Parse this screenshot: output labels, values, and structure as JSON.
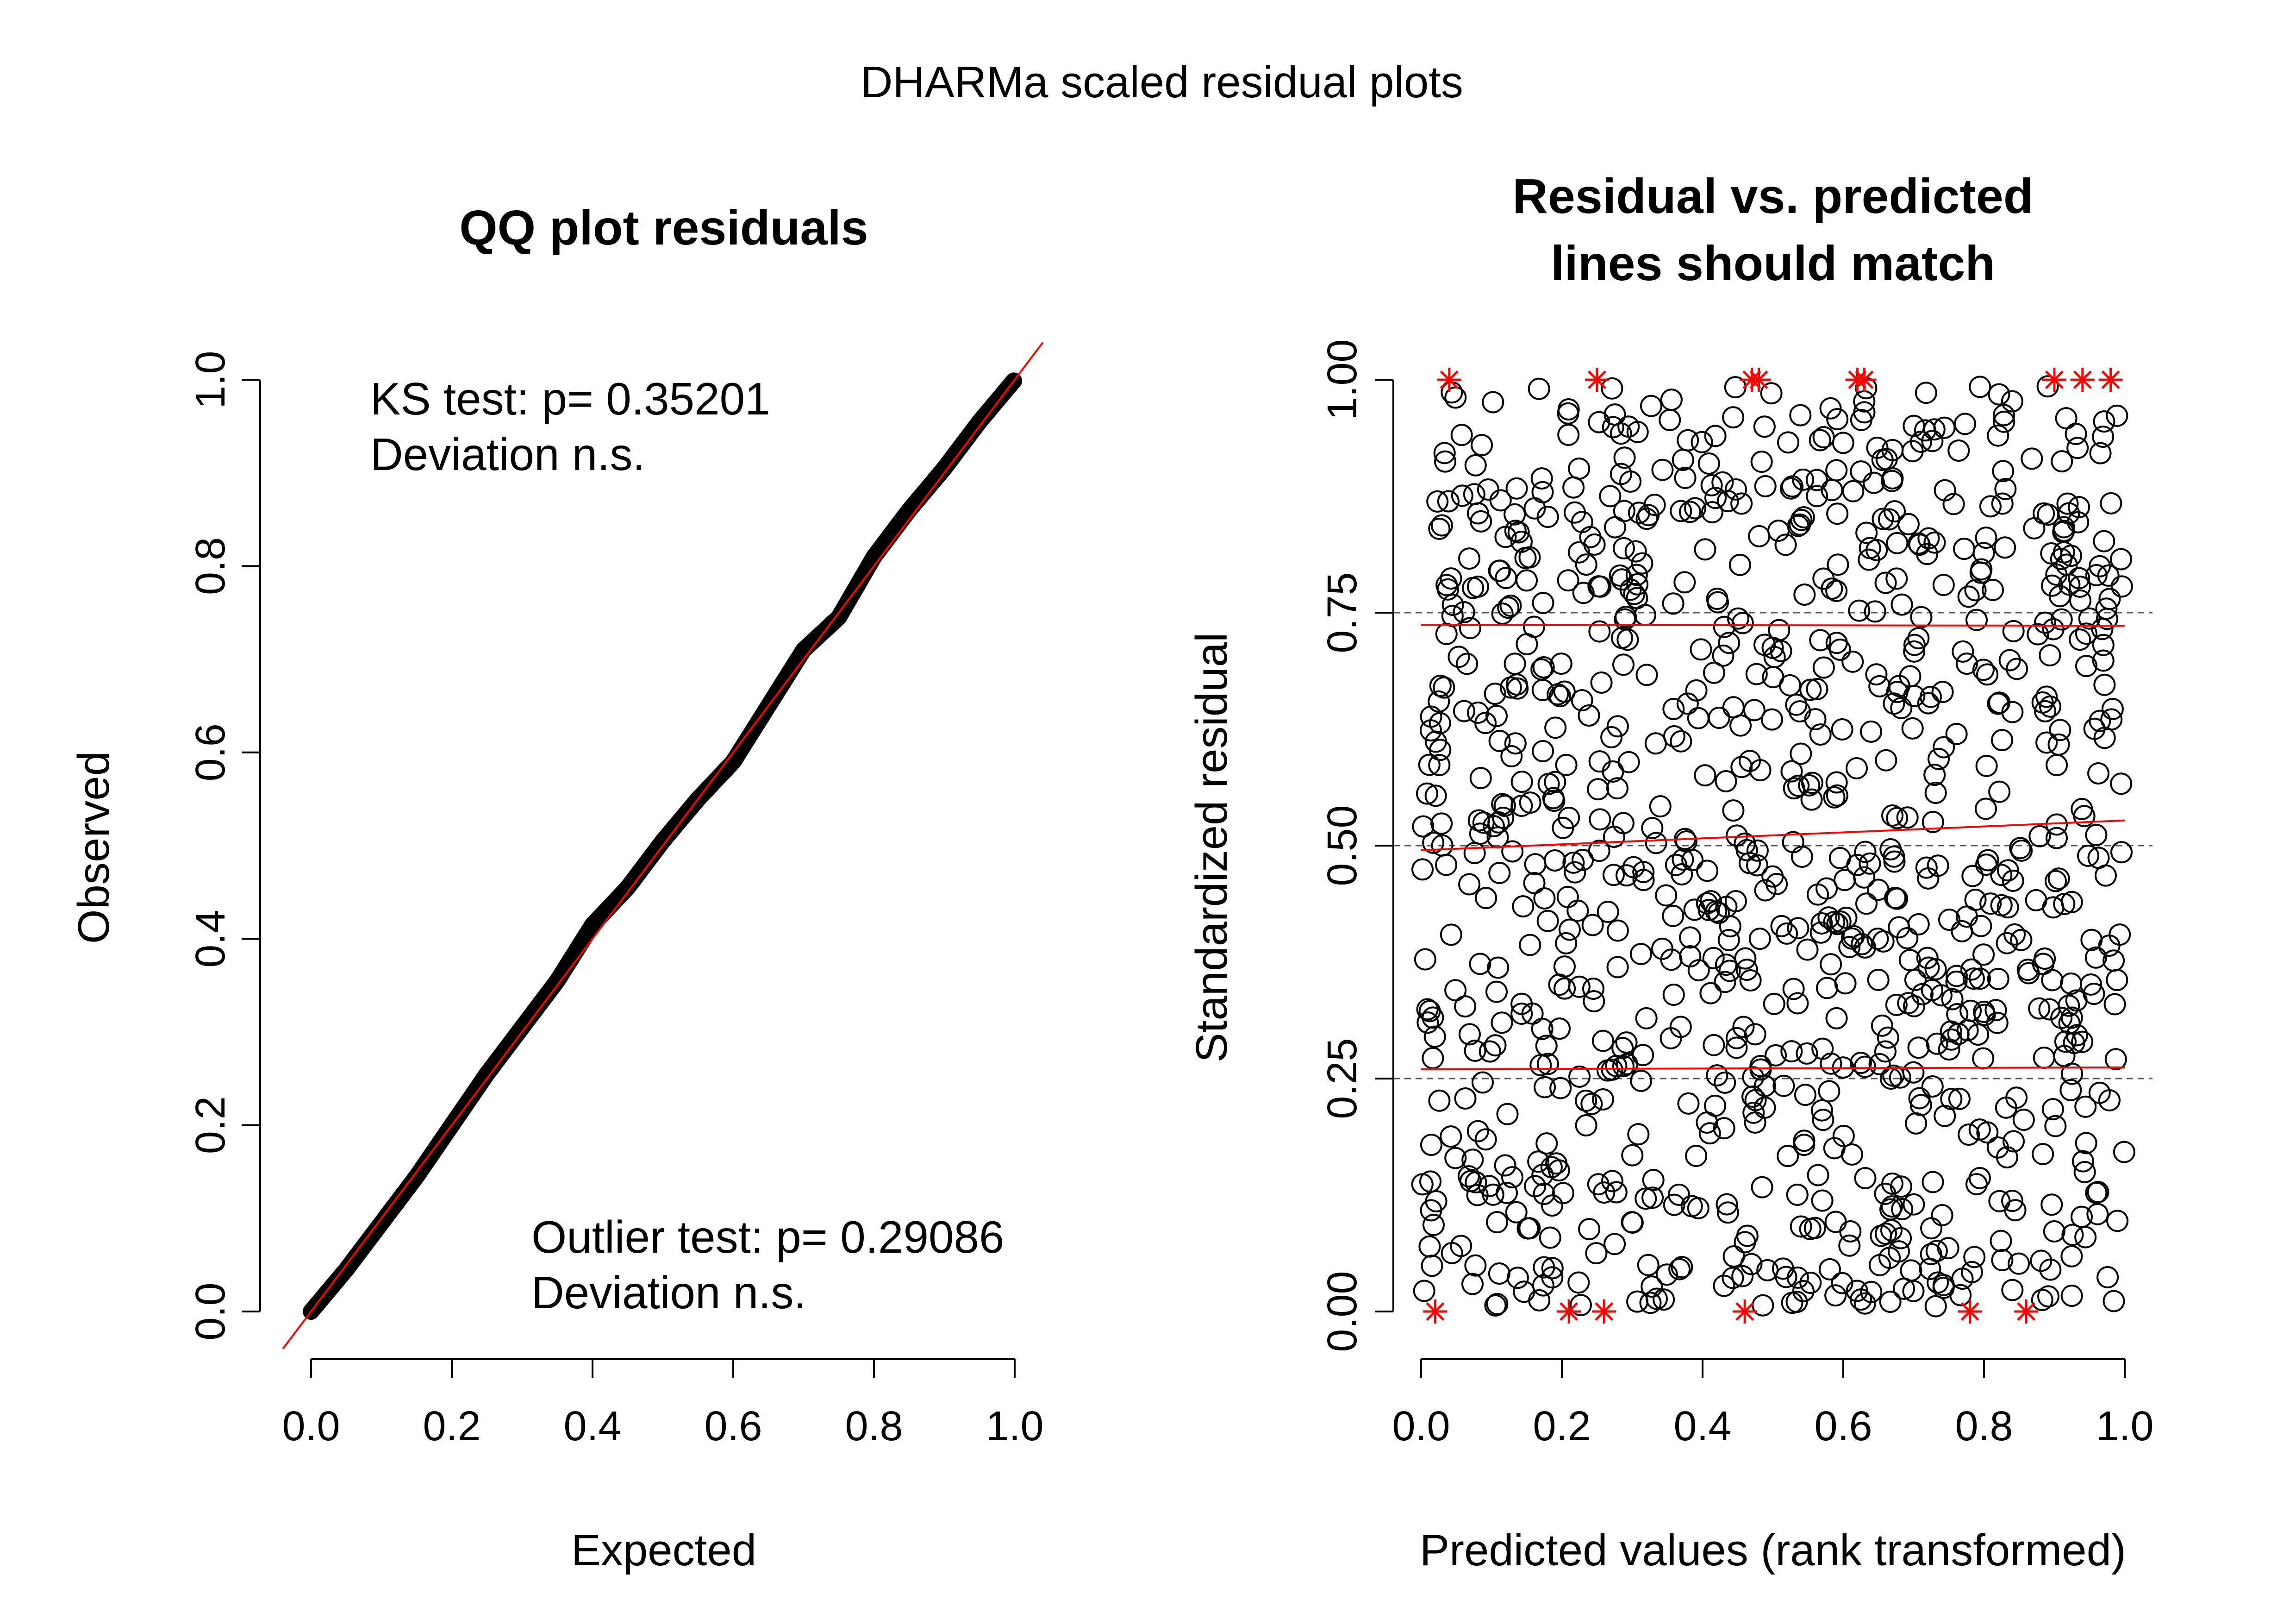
{
  "figure": {
    "title": "DHARMa scaled residual plots"
  },
  "chart_data": [
    {
      "type": "scatter",
      "title": "QQ plot residuals",
      "xlabel": "Expected",
      "ylabel": "Observed",
      "xlim": [
        0,
        1
      ],
      "ylim": [
        0,
        1
      ],
      "xticks": [
        "0.0",
        "0.2",
        "0.4",
        "0.6",
        "0.8",
        "1.0"
      ],
      "yticks": [
        "0.0",
        "0.2",
        "0.4",
        "0.6",
        "0.8",
        "1.0"
      ],
      "annotations": {
        "ks_test": "KS test: p= 0.35201",
        "ks_deviation": "Deviation  n.s.",
        "outlier_test": "Outlier test: p= 0.29086",
        "outlier_deviation": "Deviation  n.s."
      },
      "series": [
        {
          "x": [
            0.0,
            0.05,
            0.1,
            0.15,
            0.2,
            0.25,
            0.3,
            0.35,
            0.4,
            0.45,
            0.5,
            0.55,
            0.6,
            0.65,
            0.7,
            0.75,
            0.8,
            0.85,
            0.9,
            0.95,
            1.0
          ],
          "y": [
            0.0,
            0.045,
            0.095,
            0.145,
            0.2,
            0.255,
            0.305,
            0.355,
            0.415,
            0.455,
            0.505,
            0.55,
            0.59,
            0.65,
            0.71,
            0.745,
            0.81,
            0.86,
            0.905,
            0.955,
            1.0
          ]
        }
      ],
      "reference_line": {
        "slope": 1,
        "intercept": 0,
        "color": "#ff0000"
      },
      "point_color": "#000000",
      "grid": false
    },
    {
      "type": "scatter",
      "title": "Residual vs. predicted\nlines should match",
      "title_lines": [
        "Residual vs. predicted",
        "lines should match"
      ],
      "xlabel": "Predicted values (rank transformed)",
      "ylabel": "Standardized residual",
      "xlim": [
        0,
        1
      ],
      "ylim": [
        0,
        1
      ],
      "xticks": [
        "0.0",
        "0.2",
        "0.4",
        "0.6",
        "0.8",
        "1.0"
      ],
      "yticks": [
        "0.00",
        "0.25",
        "0.50",
        "0.75",
        "1.00"
      ],
      "n_points": 1000,
      "point_style": "open-circle",
      "point_color": "#000000",
      "reference_lines": [
        0.25,
        0.5,
        0.75
      ],
      "reference_line_style": "dashed-grey",
      "quantile_lines": [
        {
          "quantile": 0.25,
          "x": [
            0,
            1
          ],
          "y": [
            0.26,
            0.262
          ]
        },
        {
          "quantile": 0.5,
          "x": [
            0,
            1
          ],
          "y": [
            0.495,
            0.527
          ]
        },
        {
          "quantile": 0.75,
          "x": [
            0,
            1
          ],
          "y": [
            0.737,
            0.736
          ]
        }
      ],
      "quantile_line_color": "#ff0000",
      "outliers": {
        "marker": "asterisk",
        "color": "#ff0000",
        "top": [
          0.04,
          0.25,
          0.47,
          0.48,
          0.62,
          0.63,
          0.9,
          0.94,
          0.98
        ],
        "bottom": [
          0.02,
          0.21,
          0.26,
          0.46,
          0.78,
          0.86
        ]
      },
      "grid": false
    }
  ]
}
